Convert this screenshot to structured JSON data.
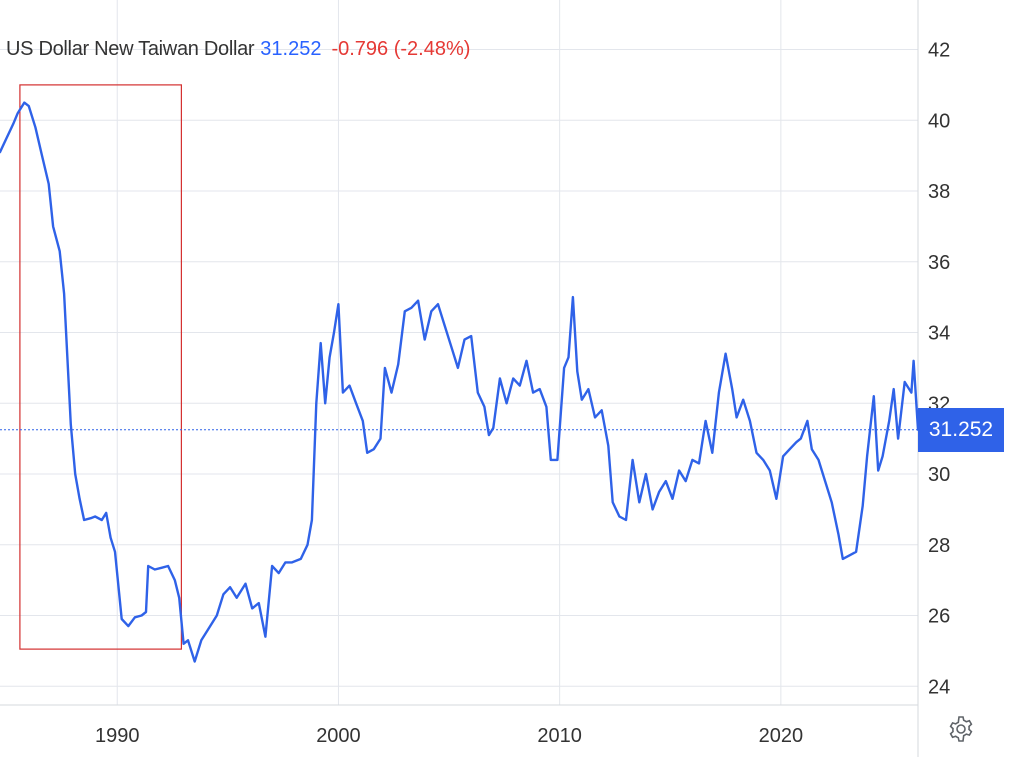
{
  "header": {
    "instrument": "US Dollar New Taiwan Dollar",
    "last": "31.252",
    "change": "-0.796 (-2.48%)"
  },
  "price_tag": "31.252",
  "settings_icon": "gear-icon",
  "colors": {
    "line": "#2f62e8",
    "up_text": "#2962ff",
    "down_text": "#e53935",
    "highlight_box": "#d32f2f",
    "grid": "#e3e6ec"
  },
  "chart_data": {
    "type": "line",
    "title": "",
    "xlabel": "",
    "ylabel": "",
    "x_ticks": [
      "1990",
      "2000",
      "2010",
      "2020"
    ],
    "y_ticks": [
      "24",
      "26",
      "28",
      "30",
      "32",
      "34",
      "36",
      "38",
      "40",
      "42"
    ],
    "xlim": [
      1984.7,
      2026.2
    ],
    "ylim": [
      22,
      43.4
    ],
    "y_axis_position": "right",
    "grid": true,
    "current_value": 31.252,
    "highlight_range": {
      "x": [
        1985.6,
        1992.9
      ],
      "y": [
        25.05,
        41.0
      ]
    },
    "series": [
      {
        "values": [
          [
            1984.7,
            39.1
          ],
          [
            1985.0,
            39.5
          ],
          [
            1985.3,
            39.9
          ],
          [
            1985.5,
            40.2
          ],
          [
            1985.8,
            40.5
          ],
          [
            1986.0,
            40.4
          ],
          [
            1986.3,
            39.8
          ],
          [
            1986.6,
            39.0
          ],
          [
            1986.9,
            38.2
          ],
          [
            1987.1,
            37.0
          ],
          [
            1987.4,
            36.3
          ],
          [
            1987.6,
            35.1
          ],
          [
            1987.9,
            31.4
          ],
          [
            1988.1,
            30.0
          ],
          [
            1988.3,
            29.3
          ],
          [
            1988.5,
            28.7
          ],
          [
            1988.8,
            28.75
          ],
          [
            1989.0,
            28.8
          ],
          [
            1989.3,
            28.7
          ],
          [
            1989.5,
            28.9
          ],
          [
            1989.7,
            28.2
          ],
          [
            1989.9,
            27.8
          ],
          [
            1990.2,
            25.9
          ],
          [
            1990.5,
            25.7
          ],
          [
            1990.8,
            25.95
          ],
          [
            1991.1,
            26.0
          ],
          [
            1991.3,
            26.1
          ],
          [
            1991.4,
            27.4
          ],
          [
            1991.7,
            27.3
          ],
          [
            1992.0,
            27.35
          ],
          [
            1992.3,
            27.4
          ],
          [
            1992.6,
            27.0
          ],
          [
            1992.8,
            26.5
          ],
          [
            1993.0,
            25.2
          ],
          [
            1993.2,
            25.3
          ],
          [
            1993.5,
            24.7
          ],
          [
            1993.8,
            25.3
          ],
          [
            1994.1,
            25.6
          ],
          [
            1994.5,
            26.0
          ],
          [
            1994.8,
            26.6
          ],
          [
            1995.1,
            26.8
          ],
          [
            1995.4,
            26.5
          ],
          [
            1995.8,
            26.9
          ],
          [
            1996.1,
            26.2
          ],
          [
            1996.4,
            26.35
          ],
          [
            1996.7,
            25.4
          ],
          [
            1997.0,
            27.4
          ],
          [
            1997.3,
            27.2
          ],
          [
            1997.6,
            27.5
          ],
          [
            1997.9,
            27.5
          ],
          [
            1998.3,
            27.6
          ],
          [
            1998.6,
            28.0
          ],
          [
            1998.8,
            28.7
          ],
          [
            1999.0,
            32.0
          ],
          [
            1999.2,
            33.7
          ],
          [
            1999.4,
            32.0
          ],
          [
            1999.6,
            33.3
          ],
          [
            1999.8,
            34.0
          ],
          [
            2000.0,
            34.8
          ],
          [
            2000.2,
            32.3
          ],
          [
            2000.5,
            32.5
          ],
          [
            2000.8,
            32.0
          ],
          [
            2001.1,
            31.5
          ],
          [
            2001.3,
            30.6
          ],
          [
            2001.6,
            30.7
          ],
          [
            2001.9,
            31.0
          ],
          [
            2002.1,
            33.0
          ],
          [
            2002.4,
            32.3
          ],
          [
            2002.7,
            33.1
          ],
          [
            2003.0,
            34.6
          ],
          [
            2003.3,
            34.7
          ],
          [
            2003.6,
            34.9
          ],
          [
            2003.9,
            33.8
          ],
          [
            2004.2,
            34.6
          ],
          [
            2004.5,
            34.8
          ],
          [
            2004.8,
            34.2
          ],
          [
            2005.1,
            33.6
          ],
          [
            2005.4,
            33.0
          ],
          [
            2005.7,
            33.8
          ],
          [
            2006.0,
            33.9
          ],
          [
            2006.3,
            32.3
          ],
          [
            2006.6,
            31.9
          ],
          [
            2006.8,
            31.1
          ],
          [
            2007.0,
            31.3
          ],
          [
            2007.3,
            32.7
          ],
          [
            2007.6,
            32.0
          ],
          [
            2007.9,
            32.7
          ],
          [
            2008.2,
            32.5
          ],
          [
            2008.5,
            33.2
          ],
          [
            2008.8,
            32.3
          ],
          [
            2009.1,
            32.4
          ],
          [
            2009.4,
            31.9
          ],
          [
            2009.6,
            30.4
          ],
          [
            2009.9,
            30.4
          ],
          [
            2010.2,
            33.0
          ],
          [
            2010.4,
            33.3
          ],
          [
            2010.6,
            35.0
          ],
          [
            2010.8,
            32.9
          ],
          [
            2011.0,
            32.1
          ],
          [
            2011.3,
            32.4
          ],
          [
            2011.6,
            31.6
          ],
          [
            2011.9,
            31.8
          ],
          [
            2012.2,
            30.8
          ],
          [
            2012.4,
            29.2
          ],
          [
            2012.7,
            28.8
          ],
          [
            2013.0,
            28.7
          ],
          [
            2013.3,
            30.4
          ],
          [
            2013.6,
            29.2
          ],
          [
            2013.9,
            30.0
          ],
          [
            2014.2,
            29.0
          ],
          [
            2014.5,
            29.5
          ],
          [
            2014.8,
            29.8
          ],
          [
            2015.1,
            29.3
          ],
          [
            2015.4,
            30.1
          ],
          [
            2015.7,
            29.8
          ],
          [
            2016.0,
            30.4
          ],
          [
            2016.3,
            30.3
          ],
          [
            2016.6,
            31.5
          ],
          [
            2016.9,
            30.6
          ],
          [
            2017.2,
            32.3
          ],
          [
            2017.5,
            33.4
          ],
          [
            2017.8,
            32.4
          ],
          [
            2018.0,
            31.6
          ],
          [
            2018.3,
            32.1
          ],
          [
            2018.6,
            31.5
          ],
          [
            2018.9,
            30.6
          ],
          [
            2019.2,
            30.4
          ],
          [
            2019.5,
            30.1
          ],
          [
            2019.8,
            29.3
          ],
          [
            2020.1,
            30.5
          ],
          [
            2020.4,
            30.7
          ],
          [
            2020.7,
            30.9
          ],
          [
            2020.9,
            31.0
          ],
          [
            2021.2,
            31.5
          ],
          [
            2021.4,
            30.7
          ],
          [
            2021.7,
            30.4
          ],
          [
            2022.0,
            29.8
          ],
          [
            2022.3,
            29.2
          ],
          [
            2022.6,
            28.3
          ],
          [
            2022.8,
            27.6
          ],
          [
            2023.1,
            27.7
          ],
          [
            2023.4,
            27.8
          ],
          [
            2023.7,
            29.1
          ],
          [
            2023.9,
            30.5
          ],
          [
            2024.2,
            32.2
          ],
          [
            2024.4,
            30.1
          ],
          [
            2024.6,
            30.5
          ],
          [
            2024.9,
            31.5
          ],
          [
            2025.1,
            32.4
          ],
          [
            2025.3,
            31.0
          ],
          [
            2025.6,
            32.6
          ],
          [
            2025.9,
            32.3
          ],
          [
            2026.0,
            33.2
          ],
          [
            2026.2,
            31.252
          ]
        ]
      }
    ]
  }
}
